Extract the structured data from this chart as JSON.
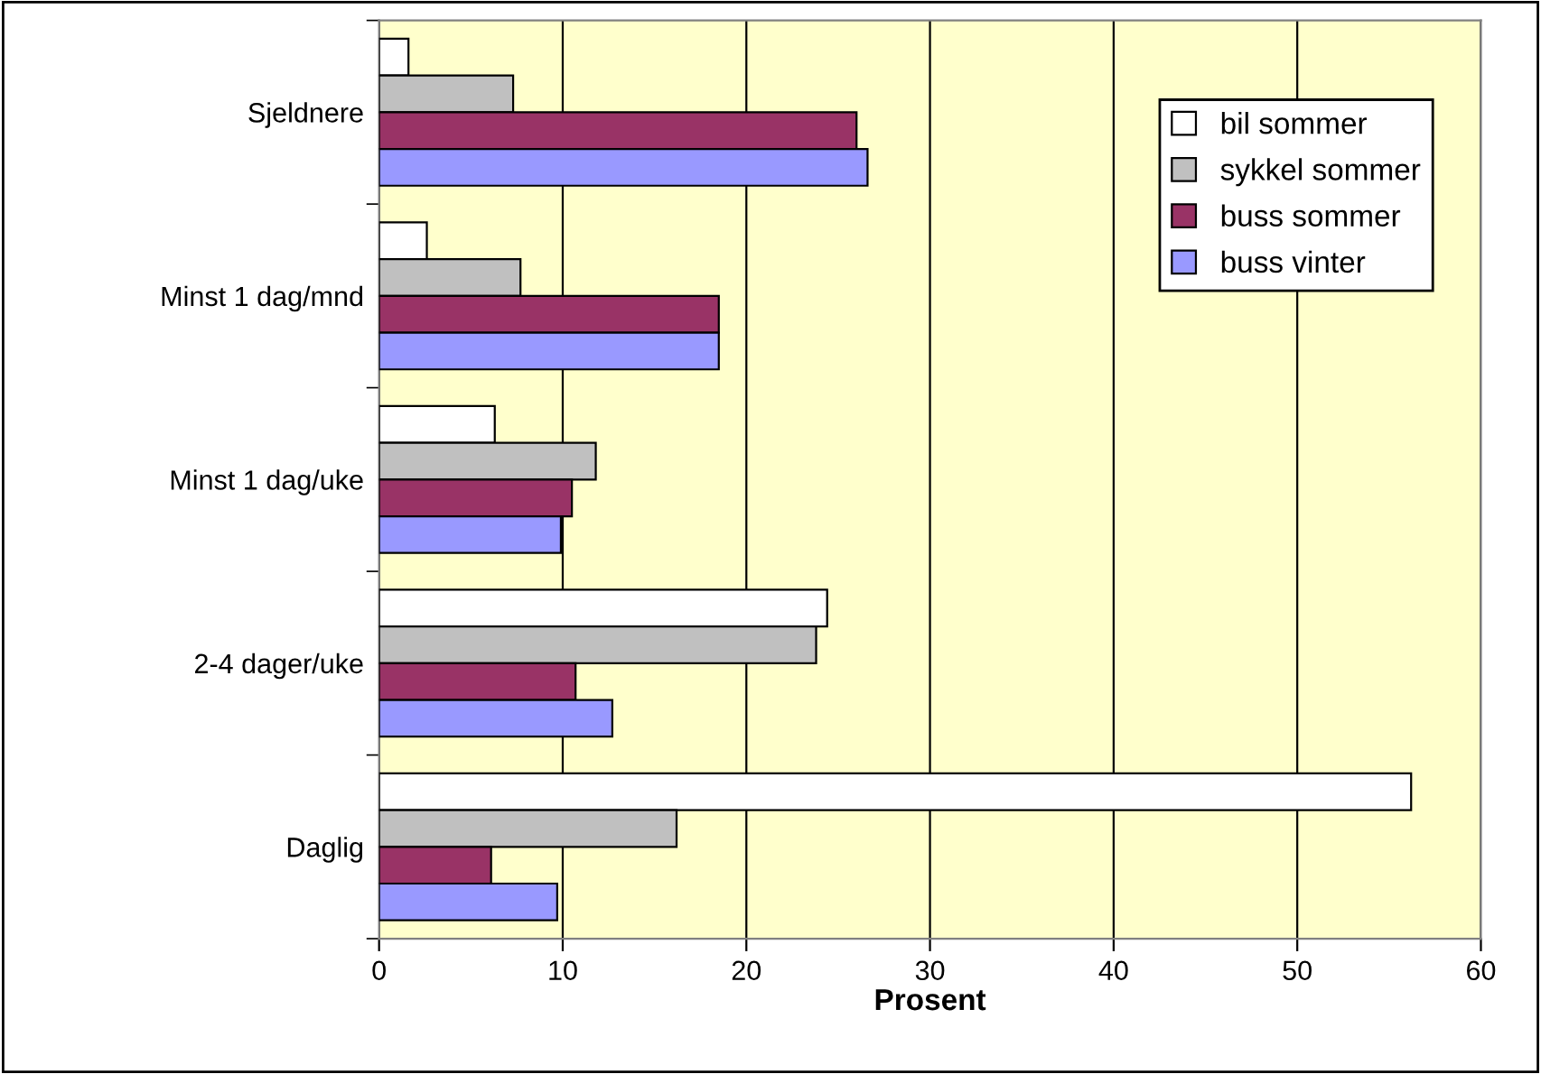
{
  "chart_data": {
    "type": "bar",
    "orientation": "horizontal",
    "xlabel": "Prosent",
    "categories": [
      "Sjeldnere",
      "Minst 1 dag/mnd",
      "Minst 1 dag/uke",
      "2-4 dager/uke",
      "Daglig"
    ],
    "series": [
      {
        "name": "bil sommer",
        "color": "#ffffff",
        "values": [
          1.6,
          2.6,
          6.3,
          24.4,
          56.2
        ]
      },
      {
        "name": "sykkel sommer",
        "color": "#c0c0c0",
        "values": [
          7.3,
          7.7,
          11.8,
          23.8,
          16.2
        ]
      },
      {
        "name": "buss sommer",
        "color": "#993366",
        "values": [
          26.0,
          18.5,
          10.5,
          10.7,
          6.1
        ]
      },
      {
        "name": "buss vinter",
        "color": "#9999ff",
        "values": [
          26.6,
          18.5,
          9.9,
          12.7,
          9.7
        ]
      }
    ],
    "xlim": [
      0,
      60
    ],
    "xticks": [
      0,
      10,
      20,
      30,
      40,
      50,
      60
    ],
    "grid": "x",
    "legend": "top right"
  }
}
